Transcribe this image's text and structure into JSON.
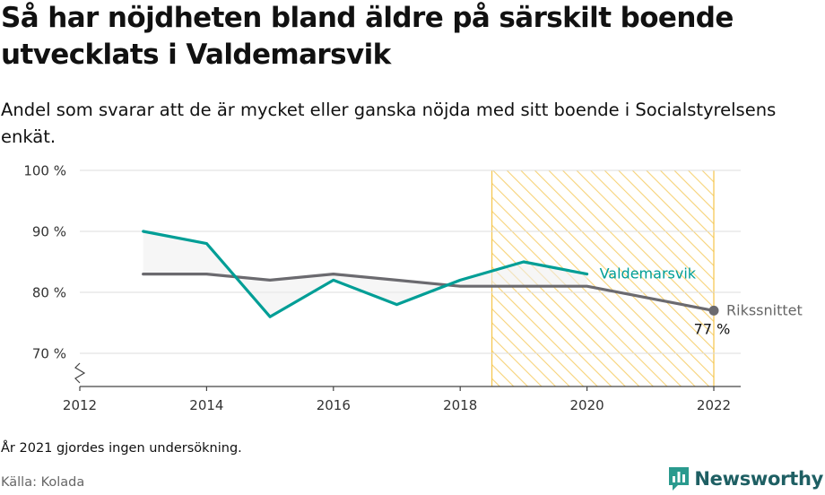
{
  "header": {
    "title": "Så har nöjdheten bland äldre på särskilt boende utvecklats i Valdemarsvik",
    "subtitle": "Andel som svarar att de är mycket eller ganska nöjda med sitt boende i Socialstyrelsens enkät."
  },
  "footer": {
    "note": "År 2021 gjordes ingen undersökning.",
    "source": "Källa: Kolada",
    "brand": "Newsworthy"
  },
  "colors": {
    "valdemarsvik": "#009e96",
    "riksnittet": "#6b6a6f",
    "highlight": "#f5c54a",
    "fill": "#eeeeee",
    "grid": "#dddddd"
  },
  "chart_data": {
    "type": "line",
    "xlim": [
      2012,
      2022
    ],
    "ylim": [
      70,
      100
    ],
    "x_ticks": [
      {
        "value": 2012,
        "label": "2012"
      },
      {
        "value": 2014,
        "label": "2014"
      },
      {
        "value": 2016,
        "label": "2016"
      },
      {
        "value": 2018,
        "label": "2018"
      },
      {
        "value": 2020,
        "label": "2020"
      },
      {
        "value": 2022,
        "label": "2022"
      }
    ],
    "y_ticks": [
      {
        "value": 70,
        "label": "70 %"
      },
      {
        "value": 80,
        "label": "80 %"
      },
      {
        "value": 90,
        "label": "90 %"
      },
      {
        "value": 100,
        "label": "100 %"
      }
    ],
    "highlight_range": [
      2018.5,
      2022
    ],
    "series": [
      {
        "name": "Valdemarsvik",
        "key": "valdemarsvik",
        "x": [
          2013,
          2014,
          2015,
          2016,
          2017,
          2018,
          2019,
          2020
        ],
        "values": [
          90,
          88,
          76,
          82,
          78,
          82,
          85,
          83
        ]
      },
      {
        "name": "Rikssnittet",
        "key": "riksnittet",
        "x": [
          2013,
          2014,
          2015,
          2016,
          2017,
          2018,
          2019,
          2020,
          2022
        ],
        "values": [
          83,
          83,
          82,
          83,
          82,
          81,
          81,
          81,
          77
        ],
        "end_label": "77 %"
      }
    ]
  }
}
